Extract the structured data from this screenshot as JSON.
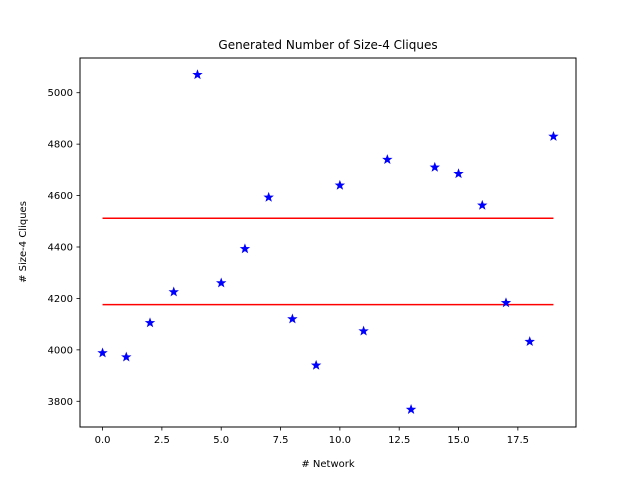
{
  "chart_data": {
    "type": "scatter",
    "title": "Generated Number of Size-4 Cliques",
    "xlabel": "# Network",
    "ylabel": "# Size-4 Cliques",
    "xlim": [
      -0.95,
      19.95
    ],
    "ylim": [
      3700,
      5135
    ],
    "xticks": [
      0.0,
      2.5,
      5.0,
      7.5,
      10.0,
      12.5,
      15.0,
      17.5
    ],
    "xtick_labels": [
      "0.0",
      "2.5",
      "5.0",
      "7.5",
      "10.0",
      "12.5",
      "15.0",
      "17.5"
    ],
    "yticks": [
      3800,
      4000,
      4200,
      4400,
      4600,
      4800,
      5000
    ],
    "ytick_labels": [
      "3800",
      "4000",
      "4200",
      "4400",
      "4600",
      "4800",
      "5000"
    ],
    "grid": false,
    "series": [
      {
        "marker": "star",
        "color": "#0000ff",
        "x": [
          0,
          1,
          2,
          3,
          4,
          5,
          6,
          7,
          8,
          9,
          10,
          11,
          12,
          13,
          14,
          15,
          16,
          17,
          18,
          19
        ],
        "y": [
          3988,
          3972,
          4105,
          4225,
          5070,
          4260,
          4393,
          4593,
          4120,
          3940,
          4640,
          4073,
          4740,
          3768,
          4710,
          4685,
          4562,
          4183,
          4032,
          4830
        ]
      }
    ],
    "hlines": [
      {
        "y": 4512,
        "xmin": 0,
        "xmax": 19,
        "color": "#ff0000"
      },
      {
        "y": 4176,
        "xmin": 0,
        "xmax": 19,
        "color": "#ff0000"
      }
    ]
  }
}
